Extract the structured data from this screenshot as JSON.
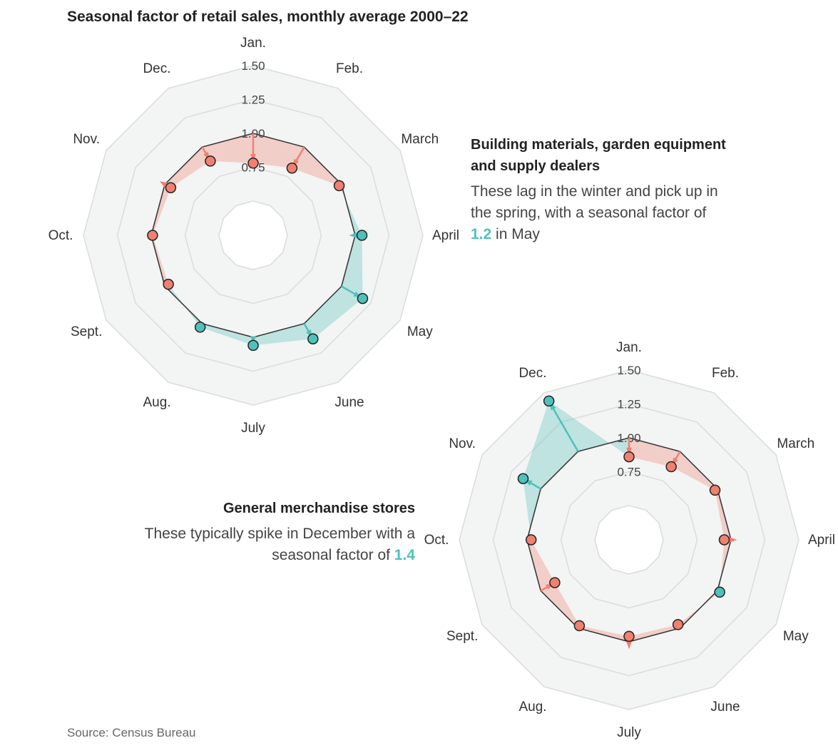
{
  "title": "Seasonal factor of retail sales, monthly average 2000–22",
  "source": "Source: Census Bureau",
  "colors": {
    "above": "#4fc1bb",
    "below": "#f08070",
    "ring_fill": "#f3f4f4",
    "ring_stroke": "#dddddd"
  },
  "annotations": [
    {
      "heading": "Building materials, garden equipment and supply dealers",
      "body_pre": "These lag in the winter and pick up in the spring, with a seasonal factor of ",
      "highlight": "1.2",
      "body_post": " in May"
    },
    {
      "heading": "General merchandise stores",
      "body_pre": "These typically spike in December with a seasonal factor of ",
      "highlight": "1.4",
      "body_post": ""
    }
  ],
  "chart_data": [
    {
      "type": "radar",
      "series_label": "Building materials, garden equipment and supply dealers",
      "categories": [
        "Jan.",
        "Feb.",
        "March",
        "April",
        "May",
        "June",
        "July",
        "Aug.",
        "Sept.",
        "Oct.",
        "Nov.",
        "Dec."
      ],
      "values": [
        0.78,
        0.82,
        0.98,
        1.05,
        1.18,
        1.13,
        1.06,
        1.03,
        0.97,
        0.99,
        0.95,
        0.88
      ],
      "baseline": 1.0,
      "r_ticks": [
        "0.75",
        "1.00",
        "1.25",
        "1.50"
      ],
      "rlim": [
        0.5,
        1.5
      ]
    },
    {
      "type": "radar",
      "series_label": "General merchandise stores",
      "categories": [
        "Jan.",
        "Feb.",
        "March",
        "April",
        "May",
        "June",
        "July",
        "Aug.",
        "Sept.",
        "Oct.",
        "Nov.",
        "Dec."
      ],
      "values": [
        0.86,
        0.87,
        0.98,
        0.95,
        1.02,
        0.97,
        0.96,
        0.98,
        0.88,
        0.97,
        1.15,
        1.43
      ],
      "baseline": 1.0,
      "r_ticks": [
        "0.75",
        "1.00",
        "1.25",
        "1.50"
      ],
      "rlim": [
        0.5,
        1.5
      ]
    }
  ]
}
